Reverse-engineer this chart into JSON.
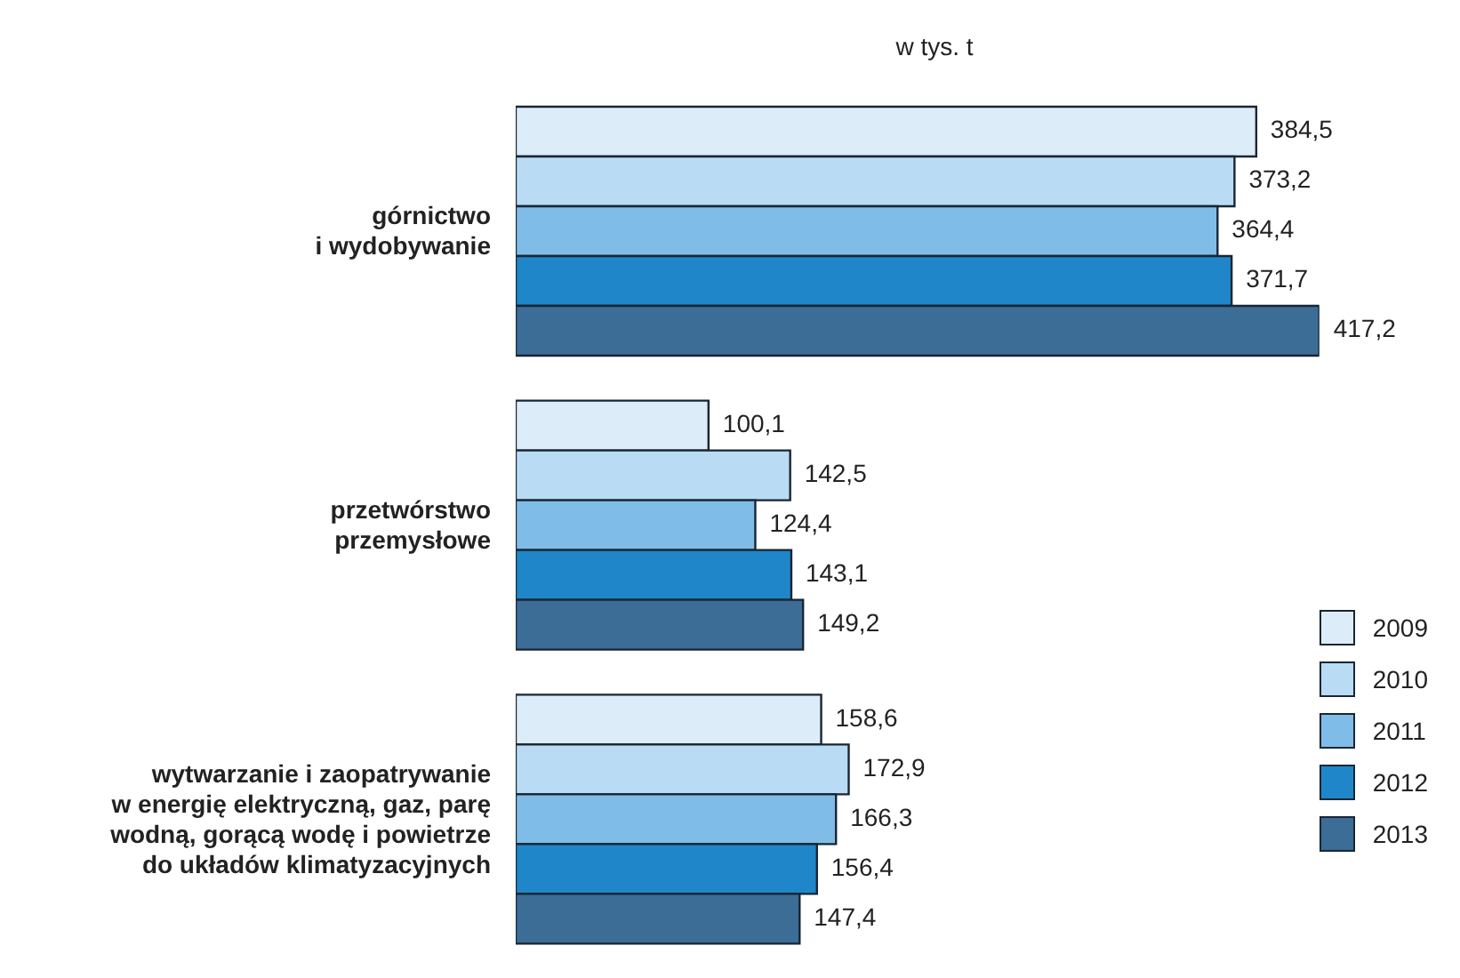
{
  "chart_data": {
    "type": "bar",
    "orientation": "horizontal",
    "title": "w tys. t",
    "categories": [
      "górnictwo\ni wydobywanie",
      "przetwórstwo\nprzemysłowe",
      "wytwarzanie i zaopatrywanie\nw energię elektryczną, gaz, parę\nwodną, gorącą wodę i powietrze\ndo układów klimatyzacyjnych"
    ],
    "series": [
      {
        "name": "2009",
        "color": "#dcecf8",
        "values": [
          384.5,
          100.1,
          158.6
        ],
        "value_labels": [
          "384,5",
          "100,1",
          "158,6"
        ]
      },
      {
        "name": "2010",
        "color": "#b9dcf4",
        "values": [
          373.2,
          142.5,
          172.9
        ],
        "value_labels": [
          "373,2",
          "142,5",
          "172,9"
        ]
      },
      {
        "name": "2011",
        "color": "#7fbde8",
        "values": [
          364.4,
          124.4,
          166.3
        ],
        "value_labels": [
          "364,4",
          "124,4",
          "166,3"
        ]
      },
      {
        "name": "2012",
        "color": "#1f87c9",
        "values": [
          371.7,
          143.1,
          156.4
        ],
        "value_labels": [
          "371,7",
          "143,1",
          "156,4"
        ]
      },
      {
        "name": "2013",
        "color": "#3b6d97",
        "values": [
          417.2,
          149.2,
          147.4
        ],
        "value_labels": [
          "417,2",
          "149,2",
          "147,4"
        ]
      }
    ],
    "legend": "bottom right"
  }
}
